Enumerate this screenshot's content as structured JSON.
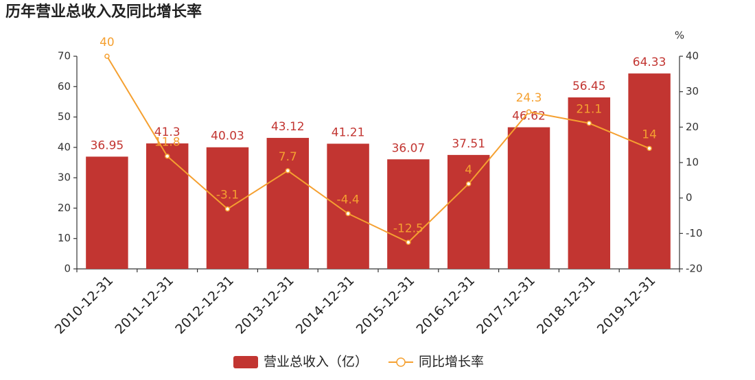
{
  "chart_data": {
    "type": "combo",
    "title": "历年营业总收入及同比增长率",
    "categories": [
      "2010-12-31",
      "2011-12-31",
      "2012-12-31",
      "2013-12-31",
      "2014-12-31",
      "2015-12-31",
      "2016-12-31",
      "2017-12-31",
      "2018-12-31",
      "2019-12-31"
    ],
    "series": [
      {
        "name": "营业总收入（亿）",
        "type": "bar",
        "color": "#c23531",
        "values": [
          36.95,
          41.3,
          40.03,
          43.12,
          41.21,
          36.07,
          37.51,
          46.62,
          56.45,
          64.33
        ]
      },
      {
        "name": "同比增长率",
        "type": "line",
        "axis": "y2",
        "color": "#f5a030",
        "values": [
          40,
          11.8,
          -3.1,
          7.7,
          -4.4,
          -12.5,
          4,
          24.3,
          21.1,
          14
        ]
      }
    ],
    "ylim": [
      0,
      70
    ],
    "yticks": [
      0,
      10,
      20,
      30,
      40,
      50,
      60,
      70
    ],
    "y2lim": [
      -20,
      40
    ],
    "y2ticks": [
      -20,
      -10,
      0,
      10,
      20,
      30,
      40
    ],
    "y2label": "%",
    "grid": false,
    "legend": "bottom"
  }
}
